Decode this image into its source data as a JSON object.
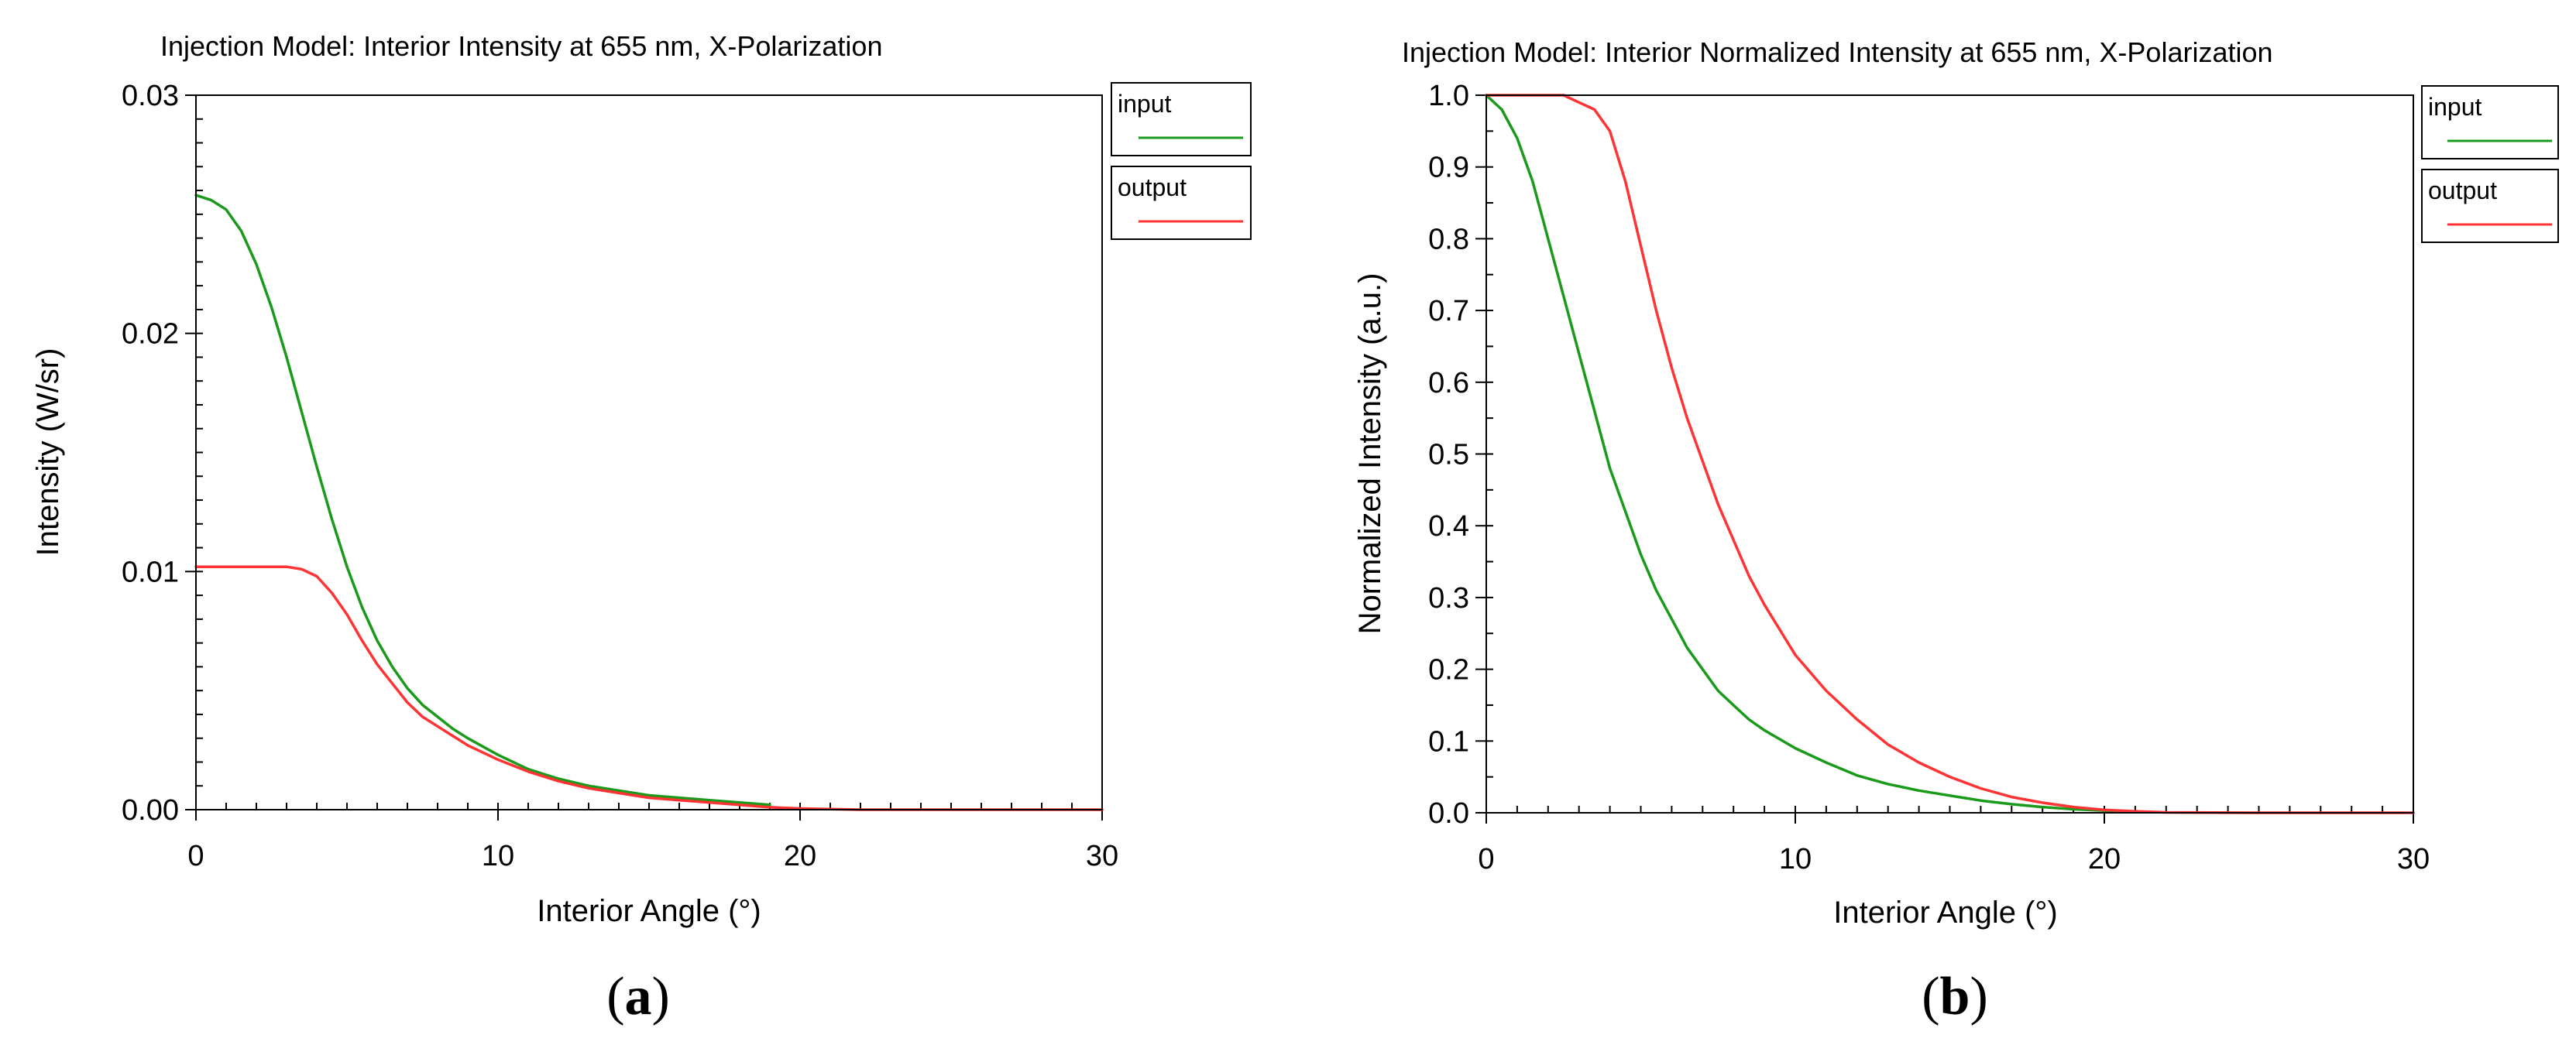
{
  "chart_data": [
    {
      "type": "line",
      "title": "Injection Model: Interior Intensity at 655 nm, X-Polarization",
      "xlabel": "Interior Angle (°)",
      "ylabel": "Intensity (W/sr)",
      "xlim": [
        0,
        30
      ],
      "ylim": [
        0,
        0.03
      ],
      "xticks": [
        0,
        10,
        20,
        30
      ],
      "xtick_labels": [
        "0",
        "10",
        "20",
        "30"
      ],
      "yticks": [
        0,
        0.01,
        0.02,
        0.03
      ],
      "ytick_labels": [
        "0.00",
        "0.01",
        "0.02",
        "0.03"
      ],
      "x_minor_step": 1,
      "y_minor_step": 0.001,
      "grid": false,
      "legend_position": "top-right-outside",
      "subfigure_label": {
        "open": "(",
        "letter": "a",
        "close": ")"
      },
      "series": [
        {
          "name": "input",
          "color": "#1a9a1a",
          "x": [
            0,
            0.5,
            1,
            1.5,
            2,
            2.5,
            3,
            3.5,
            4,
            4.5,
            5,
            5.5,
            6,
            6.5,
            7,
            7.5,
            8,
            8.5,
            9,
            10,
            11,
            12,
            13,
            14,
            15,
            16,
            17,
            18,
            19
          ],
          "values": [
            0.0258,
            0.0256,
            0.0252,
            0.0243,
            0.0229,
            0.0211,
            0.019,
            0.0167,
            0.0144,
            0.0122,
            0.0102,
            0.0085,
            0.0071,
            0.006,
            0.0051,
            0.0044,
            0.0039,
            0.0034,
            0.003,
            0.0023,
            0.0017,
            0.0013,
            0.001,
            0.0008,
            0.0006,
            0.0005,
            0.0004,
            0.0003,
            0.0002
          ]
        },
        {
          "name": "output",
          "color": "#ff3333",
          "x": [
            0,
            0.5,
            1,
            1.5,
            2,
            2.5,
            3,
            3.5,
            4,
            4.5,
            5,
            5.5,
            6,
            6.5,
            7,
            7.5,
            8,
            8.5,
            9,
            10,
            11,
            12,
            13,
            14,
            15,
            16,
            17,
            18,
            19,
            20,
            22,
            25,
            30
          ],
          "values": [
            0.0102,
            0.0102,
            0.0102,
            0.0102,
            0.0102,
            0.0102,
            0.0102,
            0.0101,
            0.0098,
            0.0091,
            0.0082,
            0.0071,
            0.0061,
            0.0053,
            0.0045,
            0.0039,
            0.0035,
            0.0031,
            0.0027,
            0.0021,
            0.0016,
            0.0012,
            0.0009,
            0.0007,
            0.0005,
            0.0004,
            0.0003,
            0.0002,
            0.0001,
            5e-05,
            0,
            0,
            0
          ]
        }
      ]
    },
    {
      "type": "line",
      "title": "Injection Model: Interior Normalized Intensity at 655 nm, X-Polarization",
      "xlabel": "Interior Angle (°)",
      "ylabel": "Normalized Intensity (a.u.)",
      "xlim": [
        0,
        30
      ],
      "ylim": [
        0,
        1
      ],
      "xticks": [
        0,
        10,
        20,
        30
      ],
      "xtick_labels": [
        "0",
        "10",
        "20",
        "30"
      ],
      "yticks": [
        0,
        0.1,
        0.2,
        0.3,
        0.4,
        0.5,
        0.6,
        0.7,
        0.8,
        0.9,
        1.0
      ],
      "ytick_labels": [
        "0.0",
        "0.1",
        "0.2",
        "0.3",
        "0.4",
        "0.5",
        "0.6",
        "0.7",
        "0.8",
        "0.9",
        "1.0"
      ],
      "x_minor_step": 1,
      "y_minor_step": 0.05,
      "grid": false,
      "legend_position": "top-right-outside",
      "subfigure_label": {
        "open": "(",
        "letter": "b",
        "close": ")"
      },
      "series": [
        {
          "name": "input",
          "color": "#1a9a1a",
          "x": [
            0,
            0.5,
            1,
            1.5,
            2,
            2.5,
            3,
            3.5,
            4,
            4.5,
            5,
            5.5,
            6,
            6.5,
            7,
            7.5,
            8,
            8.5,
            9,
            10,
            11,
            12,
            13,
            14,
            15,
            16,
            17,
            18,
            19,
            20,
            21
          ],
          "values": [
            1.0,
            0.98,
            0.94,
            0.88,
            0.8,
            0.72,
            0.64,
            0.56,
            0.48,
            0.42,
            0.36,
            0.31,
            0.27,
            0.23,
            0.2,
            0.17,
            0.15,
            0.13,
            0.115,
            0.09,
            0.07,
            0.052,
            0.04,
            0.031,
            0.024,
            0.017,
            0.012,
            0.008,
            0.005,
            0.003,
            0.001
          ]
        },
        {
          "name": "output",
          "color": "#ff3333",
          "x": [
            0,
            0.5,
            1,
            1.5,
            2,
            2.5,
            3,
            3.5,
            4,
            4.5,
            5,
            5.5,
            6,
            6.5,
            7,
            7.5,
            8,
            8.5,
            9,
            10,
            11,
            12,
            13,
            14,
            15,
            16,
            17,
            18,
            19,
            20,
            21,
            22,
            25,
            30
          ],
          "values": [
            1.0,
            1.0,
            1.0,
            1.0,
            1.0,
            1.0,
            0.99,
            0.98,
            0.95,
            0.88,
            0.79,
            0.7,
            0.62,
            0.55,
            0.49,
            0.43,
            0.38,
            0.33,
            0.29,
            0.22,
            0.17,
            0.13,
            0.095,
            0.07,
            0.05,
            0.034,
            0.022,
            0.014,
            0.008,
            0.004,
            0.002,
            0.0005,
            0,
            0
          ]
        }
      ]
    }
  ]
}
